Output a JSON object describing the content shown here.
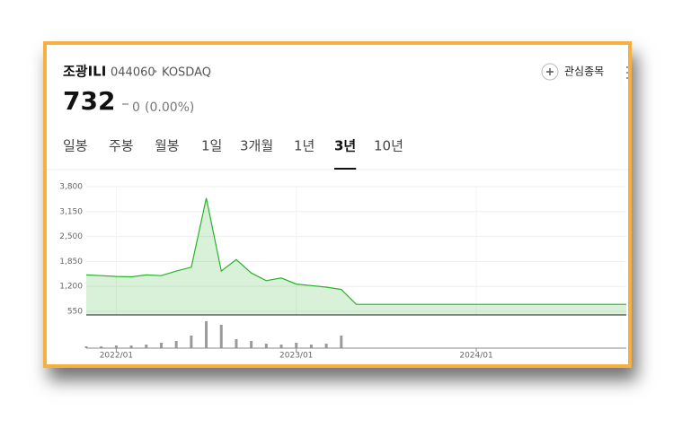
{
  "header": {
    "name": "조광ILI",
    "code": "044060",
    "bullet": "•",
    "market": "KOSDAQ",
    "watchlist": "관심종목",
    "price": "732",
    "change": "0",
    "change_pct": "(0.00%)"
  },
  "tabs": {
    "items": [
      "일봉",
      "주봉",
      "월봉",
      "1일",
      "3개월",
      "1년",
      "3년",
      "10년"
    ],
    "active": 6
  },
  "chart_data": {
    "type": "line",
    "x": [
      "2021/11",
      "2021/12",
      "2022/01",
      "2022/02",
      "2022/03",
      "2022/04",
      "2022/05",
      "2022/06",
      "2022/07",
      "2022/08",
      "2022/09",
      "2022/10",
      "2022/11",
      "2022/12",
      "2023/01",
      "2023/02",
      "2023/03",
      "2023/04",
      "2023/05",
      "2023/06",
      "2023/07",
      "2023/08",
      "2023/09",
      "2023/10",
      "2023/11",
      "2023/12",
      "2024/01",
      "2024/02",
      "2024/03",
      "2024/04",
      "2024/05",
      "2024/06",
      "2024/07",
      "2024/08",
      "2024/09",
      "2024/10",
      "2024/11"
    ],
    "values": [
      1500,
      1480,
      1460,
      1450,
      1500,
      1480,
      1600,
      1700,
      3500,
      1600,
      1900,
      1550,
      1350,
      1420,
      1260,
      1220,
      1180,
      1120,
      732,
      732,
      732,
      732,
      732,
      732,
      732,
      732,
      732,
      732,
      732,
      732,
      732,
      732,
      732,
      732,
      732,
      732,
      732
    ],
    "volume": [
      2,
      2,
      3,
      3,
      4,
      6,
      8,
      14,
      30,
      26,
      10,
      8,
      5,
      4,
      6,
      4,
      5,
      14,
      0,
      0,
      0,
      0,
      0,
      0,
      0,
      0,
      0,
      0,
      0,
      0,
      0,
      0,
      0,
      0,
      0,
      0,
      0
    ],
    "color": "#27b327",
    "volume_color": "#9a9a9a",
    "xlim": [
      "2021/11",
      "2024/11"
    ],
    "xticks": [
      "2022/01",
      "2023/01",
      "2024/01"
    ],
    "ylim": [
      456,
      3800
    ],
    "yticks": [
      550,
      {
        "value": 1200,
        "label": "1,200"
      },
      {
        "value": 1850,
        "label": "1,850"
      },
      {
        "value": 2500,
        "label": "2,500"
      },
      {
        "value": 3150,
        "label": "3,150"
      },
      {
        "value": 3800,
        "label": "3,800"
      }
    ],
    "grid": true
  }
}
